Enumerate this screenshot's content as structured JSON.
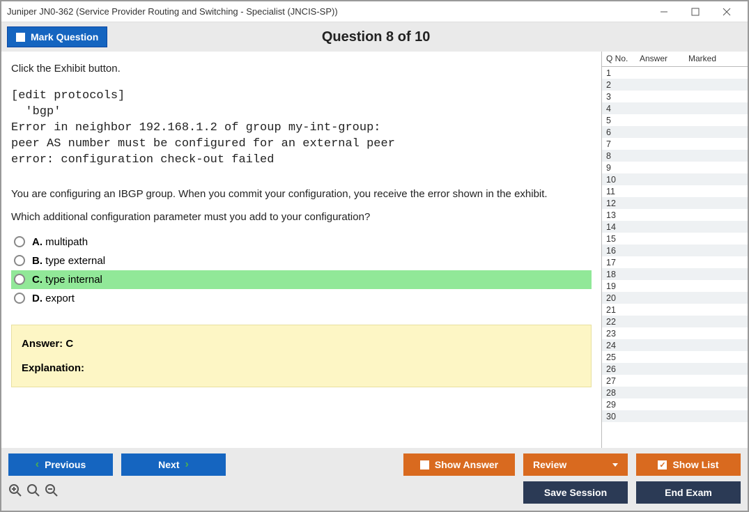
{
  "window": {
    "title": "Juniper JN0-362 (Service Provider Routing and Switching - Specialist (JNCIS-SP))"
  },
  "header": {
    "mark_question_label": "Mark Question",
    "question_title": "Question 8 of 10"
  },
  "question": {
    "stem_intro": "Click the Exhibit button.",
    "exhibit": "[edit protocols]\n  'bgp'\nError in neighbor 192.168.1.2 of group my-int-group:\npeer AS number must be configured for an external peer\nerror: configuration check-out failed",
    "stem_body1": "You are configuring an IBGP group. When you commit your configuration, you receive the error shown in the exhibit.",
    "stem_body2": "Which additional configuration parameter must you add to your configuration?",
    "options": [
      {
        "letter": "A.",
        "text": "multipath",
        "correct": false
      },
      {
        "letter": "B.",
        "text": "type external",
        "correct": false
      },
      {
        "letter": "C.",
        "text": "type internal",
        "correct": true
      },
      {
        "letter": "D.",
        "text": "export",
        "correct": false
      }
    ],
    "answer_label": "Answer: C",
    "explanation_label": "Explanation:"
  },
  "sidepanel": {
    "col_qno": "Q No.",
    "col_answer": "Answer",
    "col_marked": "Marked",
    "row_count": 30
  },
  "footer": {
    "previous": "Previous",
    "next": "Next",
    "show_answer": "Show Answer",
    "review": "Review",
    "show_list": "Show List",
    "save_session": "Save Session",
    "end_exam": "End Exam"
  },
  "colors": {
    "blue": "#1565c0",
    "orange": "#d96a1f",
    "navy": "#2b3a55",
    "correct_bg": "#91e898",
    "answer_panel_bg": "#fdf6c5",
    "header_bg": "#eaeaea",
    "even_row_bg": "#eef1f3"
  }
}
